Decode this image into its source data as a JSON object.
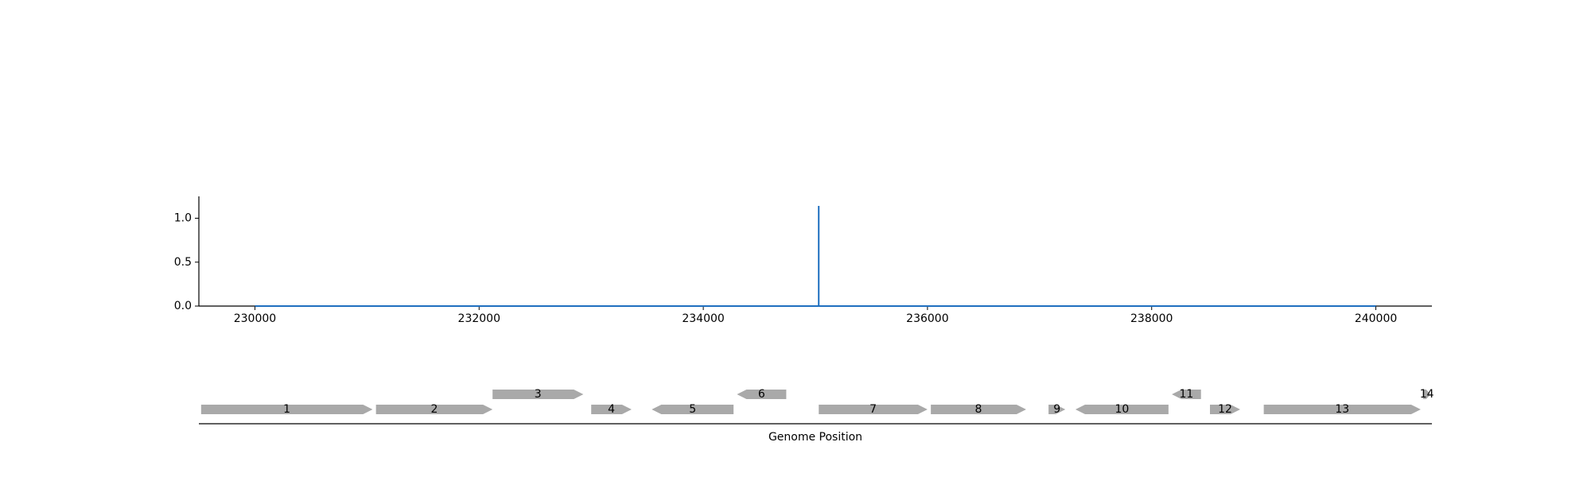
{
  "colors": {
    "signal": "#1f6fbf",
    "gene": "#a9a9a9",
    "axis": "#000000"
  },
  "chart_data": [
    {
      "type": "line",
      "title": "",
      "xlabel": "",
      "ylabel": "",
      "xlim": [
        229500,
        240500
      ],
      "ylim": [
        0,
        1.25
      ],
      "xticks": [
        230000,
        232000,
        234000,
        236000,
        238000,
        240000
      ],
      "xtick_labels": [
        "230000",
        "232000",
        "234000",
        "236000",
        "238000",
        "240000"
      ],
      "yticks": [
        0,
        0.5,
        1.0
      ],
      "ytick_labels": [
        "0.0",
        "0.5",
        "1.0"
      ],
      "grid": false,
      "legend": "none",
      "series": [
        {
          "x": [
            230000,
            235030,
            235030,
            235030,
            240000
          ],
          "y": [
            0,
            0,
            1.14,
            0,
            0
          ]
        }
      ]
    },
    {
      "type": "gene-track",
      "xlabel": "Genome Position",
      "xlim": [
        229500,
        240500
      ],
      "genes": [
        {
          "label": "1",
          "start": 229520,
          "end": 231050,
          "strand": "+",
          "row": 0
        },
        {
          "label": "2",
          "start": 231080,
          "end": 232120,
          "strand": "+",
          "row": 0
        },
        {
          "label": "3",
          "start": 232120,
          "end": 232930,
          "strand": "+",
          "row": 1
        },
        {
          "label": "4",
          "start": 233000,
          "end": 233360,
          "strand": "+",
          "row": 0
        },
        {
          "label": "5",
          "start": 233540,
          "end": 234270,
          "strand": "-",
          "row": 0
        },
        {
          "label": "6",
          "start": 234300,
          "end": 234740,
          "strand": "-",
          "row": 1
        },
        {
          "label": "7",
          "start": 235030,
          "end": 236000,
          "strand": "+",
          "row": 0
        },
        {
          "label": "8",
          "start": 236030,
          "end": 236880,
          "strand": "+",
          "row": 0
        },
        {
          "label": "9",
          "start": 237080,
          "end": 237230,
          "strand": "+",
          "row": 0
        },
        {
          "label": "10",
          "start": 237320,
          "end": 238150,
          "strand": "-",
          "row": 0
        },
        {
          "label": "11",
          "start": 238180,
          "end": 238440,
          "strand": "-",
          "row": 1
        },
        {
          "label": "12",
          "start": 238520,
          "end": 238790,
          "strand": "+",
          "row": 0
        },
        {
          "label": "13",
          "start": 239000,
          "end": 240400,
          "strand": "+",
          "row": 0
        },
        {
          "label": "14",
          "start": 240420,
          "end": 240490,
          "strand": "+",
          "row": 1
        }
      ]
    }
  ]
}
